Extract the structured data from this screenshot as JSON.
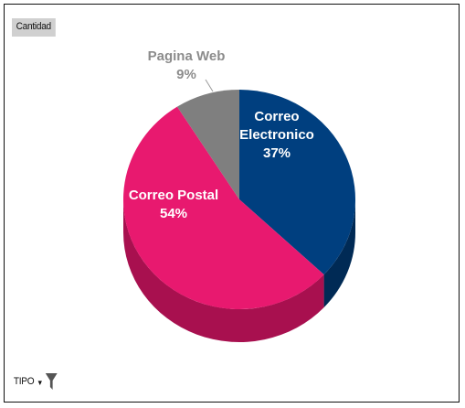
{
  "field_buttons": {
    "value_field": "Cantidad",
    "filter_field": "TIPO"
  },
  "icons": {
    "filter": "funnel-filter-icon",
    "dropdown": "dropdown-arrow-icon"
  },
  "chart_data": {
    "type": "pie",
    "style": "3d",
    "categories": [
      "Correo Electronico",
      "Correo Postal",
      "Pagina Web"
    ],
    "values": [
      37,
      54,
      9
    ],
    "labels": [
      {
        "name_lines": [
          "Correo",
          "Electronico"
        ],
        "percent": "37%"
      },
      {
        "name_lines": [
          "Correo Postal"
        ],
        "percent": "54%"
      },
      {
        "name_lines": [
          "Pagina Web"
        ],
        "percent": "9%"
      }
    ],
    "colors": [
      "#003F7F",
      "#E8196F",
      "#7F7F7F"
    ],
    "side_colors": [
      "#002A55",
      "#A8104F",
      "#5A5A5A"
    ],
    "label_colors": [
      "#FFFFFF",
      "#FFFFFF",
      "#8C8C8C"
    ],
    "legend": "none",
    "start_angle_deg": 0,
    "direction": "clockwise"
  }
}
